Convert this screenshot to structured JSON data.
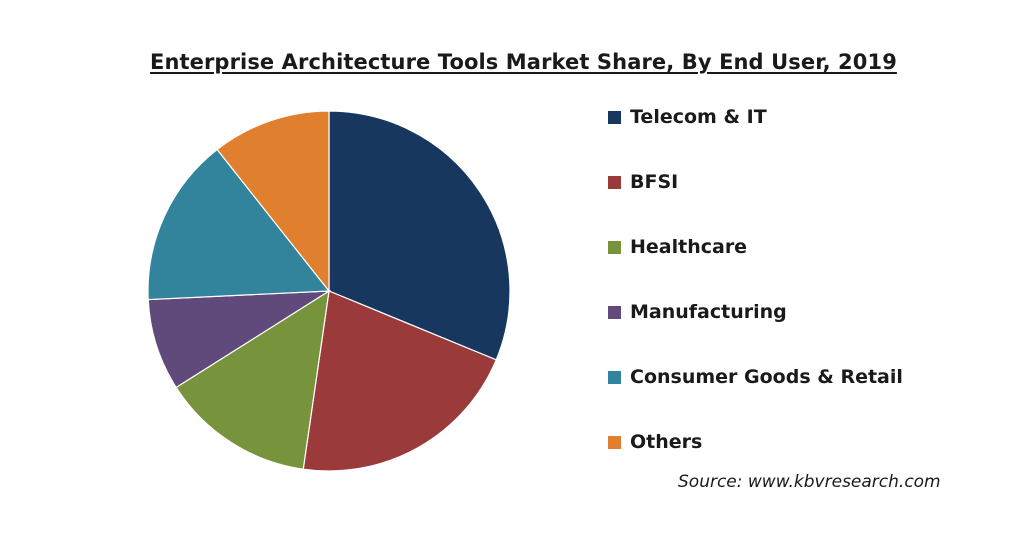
{
  "chart_data": {
    "type": "pie",
    "title": "Enterprise Architecture Tools Market Share, By End User, 2019",
    "categories": [
      "Telecom & IT",
      "BFSI",
      "Healthcare",
      "Manufacturing",
      "Consumer Goods & Retail",
      "Others"
    ],
    "values": [
      33.0,
      22.2,
      14.5,
      8.7,
      16.0,
      11.2
    ],
    "colors": [
      "#17375e",
      "#9b3a3a",
      "#77933c",
      "#604a7b",
      "#31849b",
      "#e07f2e"
    ],
    "legend_position": "right",
    "start_angle": "12 o'clock",
    "direction": "clockwise"
  },
  "source_text": "Source: www.kbvresearch.com"
}
